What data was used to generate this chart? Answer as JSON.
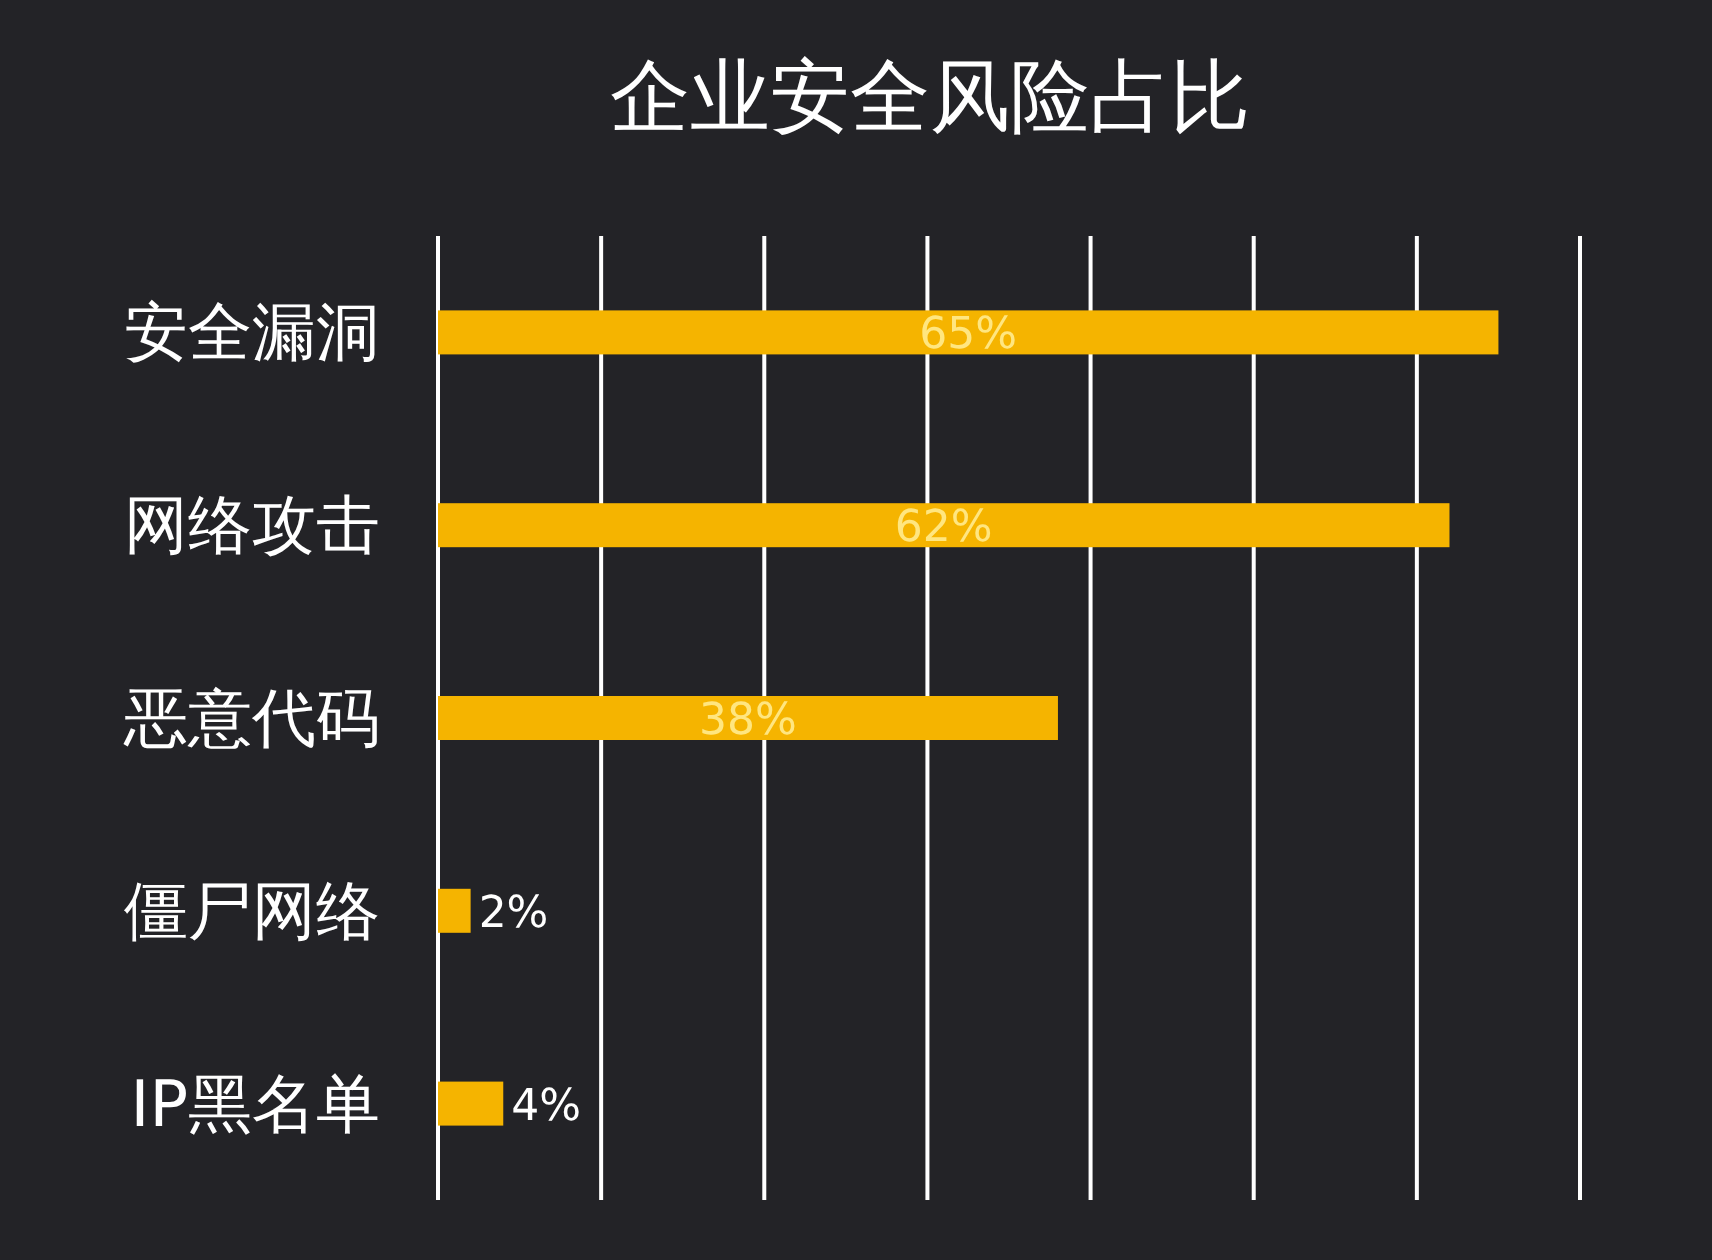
{
  "chart_data": {
    "type": "bar",
    "orientation": "horizontal",
    "title": "企业安全风险占比",
    "categories": [
      "安全漏洞",
      "网络攻击",
      "恶意代码",
      "僵尸网络",
      "IP黑名单"
    ],
    "values": [
      65,
      62,
      38,
      2,
      4
    ],
    "value_labels": [
      "65%",
      "62%",
      "38%",
      "2%",
      "4%"
    ],
    "color": "#f5b400",
    "xlim": [
      0,
      70
    ],
    "xticks": [
      {
        "value": 0,
        "label": null
      },
      {
        "value": 10,
        "label": null
      },
      {
        "value": 20,
        "label": null
      },
      {
        "value": 30,
        "label": null
      },
      {
        "value": 40,
        "label": null
      },
      {
        "value": 50,
        "label": null
      },
      {
        "value": 60,
        "label": null
      },
      {
        "value": 70,
        "label": null
      }
    ],
    "grid": "x",
    "tick_labels": "y"
  }
}
